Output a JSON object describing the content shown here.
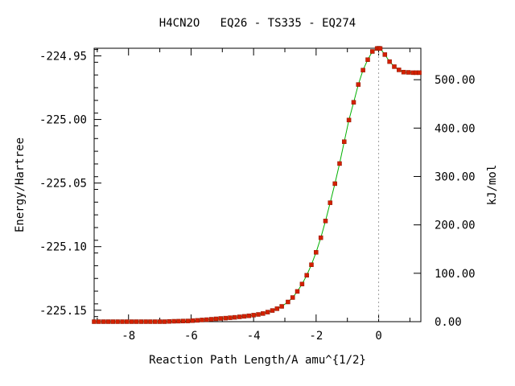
{
  "chart_data": {
    "type": "line",
    "title": "H4CN2O   EQ26 - TS335 - EQ274",
    "xlabel": "Reaction Path Length/A amu^{1/2}",
    "ylabel": "Energy/Hartree",
    "y2label": "kJ/mol",
    "xlim": [
      -9.1,
      1.35
    ],
    "ylim": [
      -225.159,
      -224.944
    ],
    "y2lim": [
      0.0,
      565.0
    ],
    "x_ticks": [
      -8,
      -6,
      -4,
      -2,
      0
    ],
    "x_tick_labels": [
      "-8",
      "-6",
      "-4",
      "-2",
      "0"
    ],
    "y_ticks": [
      -224.95,
      -225.0,
      -225.05,
      -225.1,
      -225.15
    ],
    "y_tick_labels": [
      "-224.95",
      "-225.00",
      "-225.05",
      "-225.10",
      "-225.15"
    ],
    "y2_ticks": [
      0,
      100,
      200,
      300,
      400,
      500
    ],
    "y2_tick_labels": [
      "0.00",
      "100.00",
      "200.00",
      "300.00",
      "400.00",
      "500.00"
    ],
    "ts_x": 0.0,
    "grid": false,
    "line_color": "#00b000",
    "marker_color": "#d42000",
    "points": {
      "x": [
        -9.1,
        -8.95,
        -8.8,
        -8.65,
        -8.5,
        -8.35,
        -8.2,
        -8.05,
        -7.9,
        -7.75,
        -7.6,
        -7.45,
        -7.3,
        -7.15,
        -7.0,
        -6.85,
        -6.7,
        -6.55,
        -6.4,
        -6.25,
        -6.1,
        -5.95,
        -5.8,
        -5.65,
        -5.5,
        -5.35,
        -5.2,
        -5.05,
        -4.9,
        -4.75,
        -4.6,
        -4.45,
        -4.3,
        -4.15,
        -4.0,
        -3.85,
        -3.7,
        -3.55,
        -3.4,
        -3.25,
        -3.1,
        -2.9,
        -2.75,
        -2.6,
        -2.45,
        -2.3,
        -2.15,
        -2.0,
        -1.85,
        -1.7,
        -1.55,
        -1.4,
        -1.25,
        -1.1,
        -0.95,
        -0.8,
        -0.65,
        -0.5,
        -0.35,
        -0.2,
        -0.05,
        0.0,
        0.05,
        0.2,
        0.35,
        0.5,
        0.65,
        0.8,
        0.95,
        1.1,
        1.2,
        1.3
      ],
      "y": [
        -225.159,
        -225.159,
        -225.159,
        -225.159,
        -225.159,
        -225.159,
        -225.159,
        -225.159,
        -225.159,
        -225.159,
        -225.159,
        -225.159,
        -225.159,
        -225.159,
        -225.159,
        -225.159,
        -225.1588,
        -225.1587,
        -225.1586,
        -225.1585,
        -225.1584,
        -225.1582,
        -225.158,
        -225.1577,
        -225.1574,
        -225.1571,
        -225.1568,
        -225.1565,
        -225.1562,
        -225.1559,
        -225.1556,
        -225.1552,
        -225.1548,
        -225.1544,
        -225.1539,
        -225.1533,
        -225.1526,
        -225.1515,
        -225.1502,
        -225.1488,
        -225.147,
        -225.1435,
        -225.14,
        -225.1352,
        -225.1294,
        -225.1225,
        -225.1142,
        -225.1045,
        -225.093,
        -225.0798,
        -225.0655,
        -225.0505,
        -225.0347,
        -225.0175,
        -225.0005,
        -224.9865,
        -224.9725,
        -224.9612,
        -224.953,
        -224.9465,
        -224.9442,
        -224.944,
        -224.9442,
        -224.949,
        -224.9545,
        -224.9585,
        -224.961,
        -224.9628,
        -224.963,
        -224.9632,
        -224.9632,
        -224.9632
      ]
    }
  }
}
